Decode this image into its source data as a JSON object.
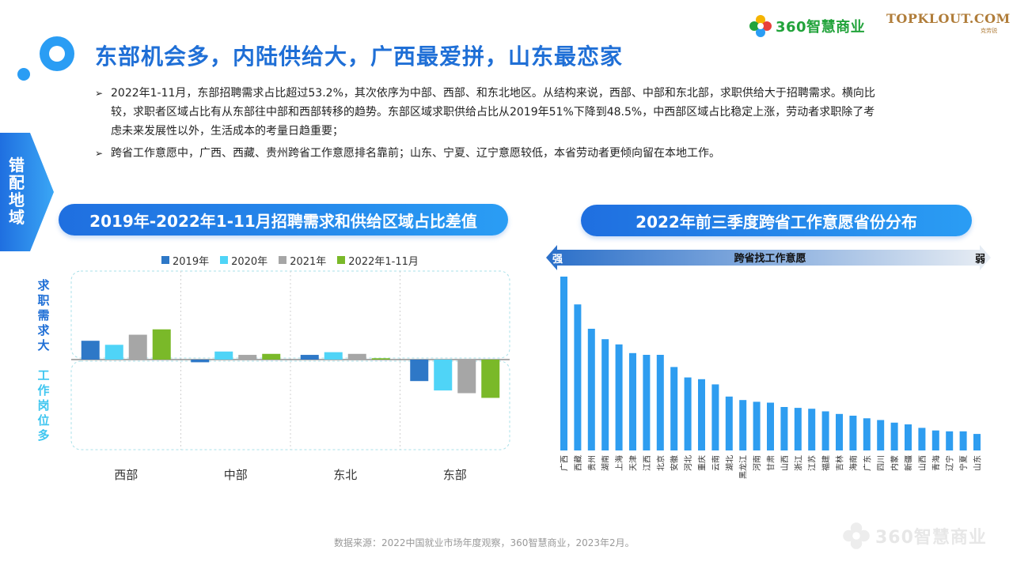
{
  "header": {
    "title": "东部机会多，内陆供给大，广西最爱拼，山东最恋家",
    "brand_360": "360智慧商业",
    "brand_topklout": "TOPKLOUT.COM",
    "brand_topklout_sub": "克劳锐"
  },
  "side_tab": {
    "label": "错配地域"
  },
  "bullets": [
    "2022年1-11月，东部招聘需求占比超过53.2%，其次依序为中部、西部、和东北地区。从结构来说，西部、中部和东北部，求职供给大于招聘需求。横向比较，求职者区域占比有从东部往中部和西部转移的趋势。东部区域求职供给占比从2019年51%下降到48.5%，中西部区域占比稳定上涨，劳动者求职除了考虑未来发展性以外，生活成本的考量日趋重要；",
    "跨省工作意愿中，广西、西藏、贵州跨省工作意愿排名靠前；山东、宁夏、辽宁意愿较低，本省劳动者更倾向留在本地工作。"
  ],
  "bullet_marker": "➢",
  "colors": {
    "accent": "#1f6fd6",
    "series": [
      "#2e78c7",
      "#4fd4f7",
      "#a6a6a6",
      "#7ab929"
    ],
    "bar_right": "#2e9df0"
  },
  "left_chart": {
    "pill_title": "2019年-2022年1-11月招聘需求和供给区域占比差值",
    "label_top": "求职需求大",
    "label_bottom": "工作岗位多"
  },
  "right_chart": {
    "pill_title": "2022年前三季度跨省工作意愿省份分布",
    "arrow_label": "跨省找工作意愿",
    "strong_label": "强",
    "weak_label": "弱"
  },
  "chart_data": [
    {
      "type": "bar",
      "categories": [
        "西部",
        "中部",
        "东北",
        "东部"
      ],
      "series": [
        {
          "name": "2019年",
          "values": [
            2.8,
            -0.4,
            0.7,
            -3.2
          ]
        },
        {
          "name": "2020年",
          "values": [
            2.2,
            1.2,
            1.1,
            -4.6
          ]
        },
        {
          "name": "2021年",
          "values": [
            3.7,
            0.7,
            0.85,
            -5.0
          ]
        },
        {
          "name": "2022年1-11月",
          "values": [
            4.5,
            0.85,
            0.2,
            -5.7
          ]
        }
      ],
      "ylim": [
        -7,
        7
      ],
      "grid": false,
      "legend": "top"
    },
    {
      "type": "bar",
      "categories": [
        "广西",
        "西藏",
        "贵州",
        "湖南",
        "上海",
        "天津",
        "江西",
        "北京",
        "安徽",
        "河北",
        "重庆",
        "云南",
        "湖北",
        "黑龙江",
        "河南",
        "甘肃",
        "山西",
        "浙江",
        "江苏",
        "福建",
        "吉林",
        "海南",
        "广东",
        "四川",
        "内蒙",
        "新疆",
        "山西",
        "青海",
        "辽宁",
        "宁夏",
        "山东"
      ],
      "values": [
        100,
        84,
        70,
        64,
        61,
        56,
        55,
        55,
        48,
        42,
        41,
        38,
        31,
        29,
        28,
        27.5,
        25,
        24.5,
        24,
        22.5,
        21,
        20,
        18.5,
        17.5,
        16,
        15,
        13,
        11.5,
        11,
        11,
        9.5
      ],
      "ylim": [
        0,
        100
      ],
      "grid": false
    }
  ],
  "source": "数据来源：2022中国就业市场年度观察，360智慧商业，2023年2月。",
  "watermark": "360智慧商业"
}
